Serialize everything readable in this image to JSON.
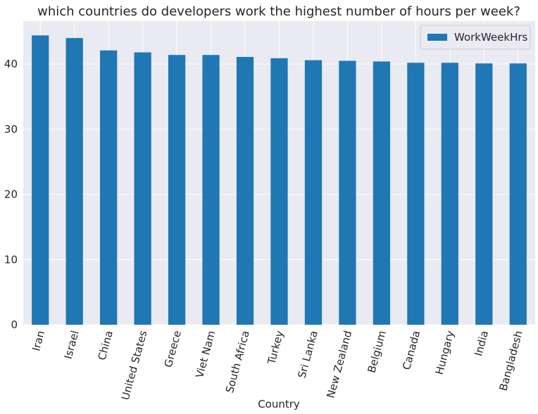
{
  "chart_data": {
    "type": "bar",
    "title": "which countries do developers work the highest number of hours per week?",
    "xlabel": "Country",
    "ylabel": "",
    "categories": [
      "Iran",
      "Israel",
      "China",
      "United States",
      "Greece",
      "Viet Nam",
      "South Africa",
      "Turkey",
      "Sri Lanka",
      "New Zealand",
      "Belgium",
      "Canada",
      "Hungary",
      "India",
      "Bangladesh"
    ],
    "series": [
      {
        "name": "WorkWeekHrs",
        "values": [
          44.4,
          44.0,
          42.1,
          41.8,
          41.4,
          41.4,
          41.1,
          40.9,
          40.6,
          40.5,
          40.4,
          40.2,
          40.2,
          40.1,
          40.1
        ],
        "color": "#1f77b4"
      }
    ],
    "ylim": [
      0,
      46.6
    ],
    "yticks": [
      0,
      10,
      20,
      30,
      40
    ],
    "grid": true,
    "legend": "top-right",
    "background": "#eaeaf2",
    "gridcolor": "#ffffff"
  }
}
